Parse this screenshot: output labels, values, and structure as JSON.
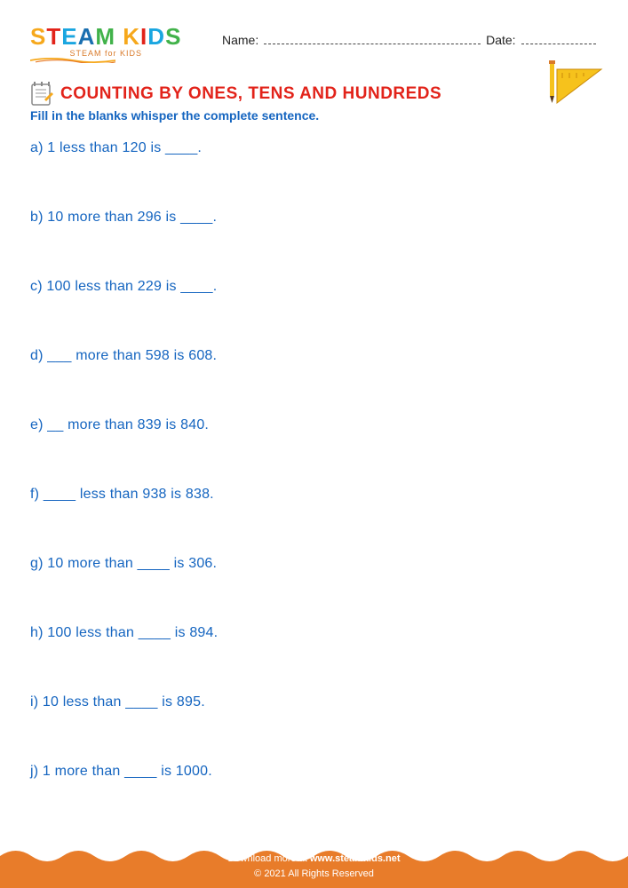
{
  "logo": {
    "chars": [
      "S",
      "T",
      "E",
      "A",
      "M",
      " ",
      "K",
      "I",
      "D",
      "S"
    ],
    "colors": [
      "#f6a81c",
      "#e2231a",
      "#1aa6e0",
      "#1a6fb0",
      "#41b24a",
      "#000",
      "#f6a81c",
      "#e2231a",
      "#1aa6e0",
      "#41b24a"
    ],
    "subtitle": "STEAM for KIDS"
  },
  "header": {
    "name_label": "Name:",
    "date_label": "Date:"
  },
  "title": "COUNTING BY ONES, TENS AND HUNDREDS",
  "instruction": "Fill in the blanks whisper the complete sentence.",
  "questions": [
    {
      "letter": "a)",
      "text": "1 less than 120 is ____."
    },
    {
      "letter": "b)",
      "text": "10 more than 296 is ____."
    },
    {
      "letter": "c)",
      "text": "100 less than 229 is ____."
    },
    {
      "letter": "d)",
      "text": "___ more than 598 is 608."
    },
    {
      "letter": "e)",
      "text": "__ more than 839 is 840."
    },
    {
      "letter": "f)",
      "text": "____ less than 938 is 838."
    },
    {
      "letter": "g)",
      "text": "10 more than ____ is 306."
    },
    {
      "letter": "h)",
      "text": "100 less than ____ is 894."
    },
    {
      "letter": "i)",
      "text": "10 less than ____ is 895."
    },
    {
      "letter": "j)",
      "text": "1 more than ____ is 1000."
    }
  ],
  "footer": {
    "line1_prefix": "Download more at ",
    "site": "www.steamkids.net",
    "line2": "© 2021 All Rights Reserved"
  },
  "colors": {
    "title": "#e2231a",
    "body_text": "#1565c0",
    "footer_bg": "#e87c2a",
    "footer_text": "#ffffff"
  }
}
